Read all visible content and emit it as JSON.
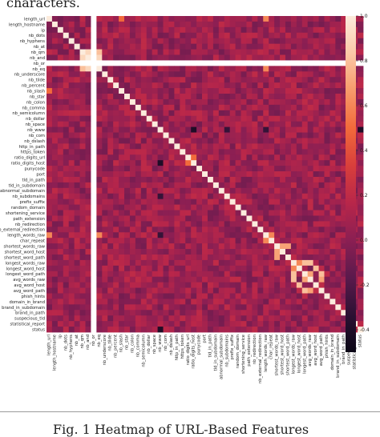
{
  "page": {
    "top_text": "characters.",
    "caption": "Fig. 1 Heatmap of URL-Based Features"
  },
  "colors": {
    "background": "#ffffff",
    "text": "#222222",
    "colormap": [
      "#0b0716",
      "#2c1133",
      "#5b1a4c",
      "#8b1f53",
      "#b8264a",
      "#d93f3b",
      "#f26a3b",
      "#f79a6a",
      "#fbc9a7",
      "#fcebdc"
    ]
  },
  "chart_data": {
    "type": "heatmap",
    "title": "",
    "row_labels": [
      "length_url",
      "length_hostname",
      "ip",
      "nb_dots",
      "nb_hyphens",
      "nb_at",
      "nb_qm",
      "nb_and",
      "nb_or",
      "nb_eq",
      "nb_underscore",
      "nb_tilde",
      "nb_percent",
      "nb_slash",
      "nb_star",
      "nb_colon",
      "nb_comma",
      "nb_semicolumn",
      "nb_dollar",
      "nb_space",
      "nb_www",
      "nb_com",
      "nb_dslash",
      "http_in_path",
      "https_token",
      "ratio_digits_url",
      "ratio_digits_host",
      "punycode",
      "port",
      "tld_in_path",
      "tld_in_subdomain",
      "abnormal_subdomain",
      "nb_subdomains",
      "prefix_suffix",
      "random_domain",
      "shortening_service",
      "path_extension",
      "nb_redirection",
      "nb_external_redirection",
      "length_words_raw",
      "char_repeat",
      "shortest_words_raw",
      "shortest_word_host",
      "shortest_word_path",
      "longest_words_raw",
      "longest_word_host",
      "longest_word_path",
      "avg_words_raw",
      "avg_word_host",
      "avg_word_path",
      "phish_hints",
      "domain_in_brand",
      "brand_in_subdomain",
      "brand_in_path",
      "suspecious_tld",
      "statistical_report",
      "status"
    ],
    "blank_rows": [
      "nb_or"
    ],
    "colorbar_ticks": [
      1.0,
      0.8,
      0.6,
      0.4,
      0.2,
      0.0,
      -0.2,
      -0.4
    ],
    "colorbar_tick_labels": [
      "1.0",
      "0.8",
      "0.6",
      "0.4",
      "0.2",
      "0.0",
      "-0.2",
      "-0.4"
    ],
    "vmin": -0.5,
    "vmax": 1.0,
    "diagonal_value": 1.0,
    "notable_correlations": [
      {
        "a": "nb_qm",
        "b": "nb_and",
        "value": 0.9
      },
      {
        "a": "nb_and",
        "b": "nb_eq",
        "value": 0.9
      },
      {
        "a": "nb_qm",
        "b": "nb_eq",
        "value": 0.8
      },
      {
        "a": "length_url",
        "b": "length_words_raw",
        "value": 0.6
      },
      {
        "a": "length_url",
        "b": "nb_slash",
        "value": 0.5
      },
      {
        "a": "length_words_raw",
        "b": "nb_eq",
        "value": 0.6
      },
      {
        "a": "shortest_words_raw",
        "b": "shortest_word_host",
        "value": 0.7
      },
      {
        "a": "shortest_words_raw",
        "b": "shortest_word_path",
        "value": 0.7
      },
      {
        "a": "longest_words_raw",
        "b": "longest_word_host",
        "value": 0.6
      },
      {
        "a": "longest_words_raw",
        "b": "longest_word_path",
        "value": 0.8
      },
      {
        "a": "longest_words_raw",
        "b": "avg_words_raw",
        "value": 0.8
      },
      {
        "a": "longest_word_host",
        "b": "avg_word_host",
        "value": 0.8
      },
      {
        "a": "longest_word_path",
        "b": "avg_word_path",
        "value": 0.8
      },
      {
        "a": "avg_words_raw",
        "b": "avg_word_path",
        "value": 0.7
      },
      {
        "a": "longest_word_path",
        "b": "avg_words_raw",
        "value": 0.7
      },
      {
        "a": "ratio_digits_url",
        "b": "ratio_digits_host",
        "value": 0.5
      },
      {
        "a": "nb_www",
        "b": "ratio_digits_host",
        "value": -0.4
      },
      {
        "a": "nb_www",
        "b": "status",
        "value": -0.4
      },
      {
        "a": "nb_subdomains",
        "b": "nb_www",
        "value": -0.3
      },
      {
        "a": "length_words_raw",
        "b": "nb_www",
        "value": -0.3
      },
      {
        "a": "char_repeat",
        "b": "length_words_raw",
        "value": 0.6
      }
    ]
  }
}
